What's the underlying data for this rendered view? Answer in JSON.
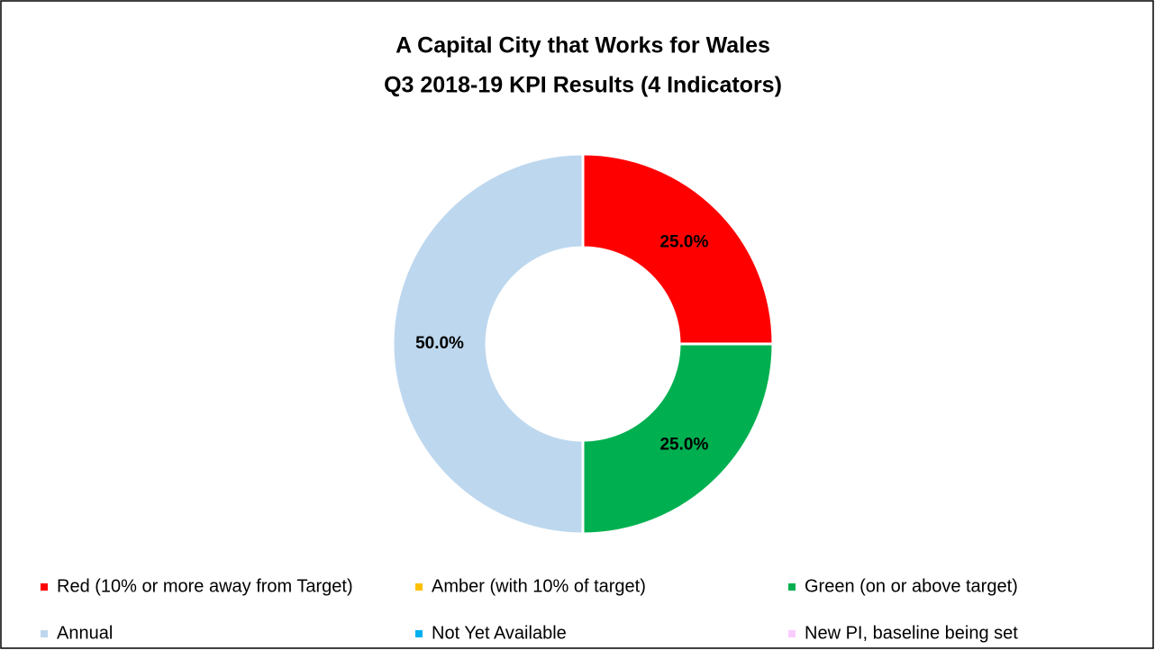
{
  "chart_data": {
    "type": "donut",
    "title": [
      "A Capital City that Works for Wales",
      "Q3 2018-19 KPI Results (4 Indicators)"
    ],
    "categories": [
      "Red (10% or more away from Target)",
      "Amber (with 10% of target)",
      "Green (on or above target)",
      "Annual",
      "Not Yet Available",
      "New PI, baseline being set"
    ],
    "values": [
      25,
      0,
      25,
      50,
      0,
      0
    ],
    "value_labels": [
      "25.0%",
      null,
      "25.0%",
      "50.0%",
      null,
      null
    ],
    "colors": [
      "#ff0000",
      "#ffc000",
      "#00b050",
      "#bdd7ee",
      "#00b0f0",
      "#f9ccff"
    ],
    "legend": "bottom"
  }
}
